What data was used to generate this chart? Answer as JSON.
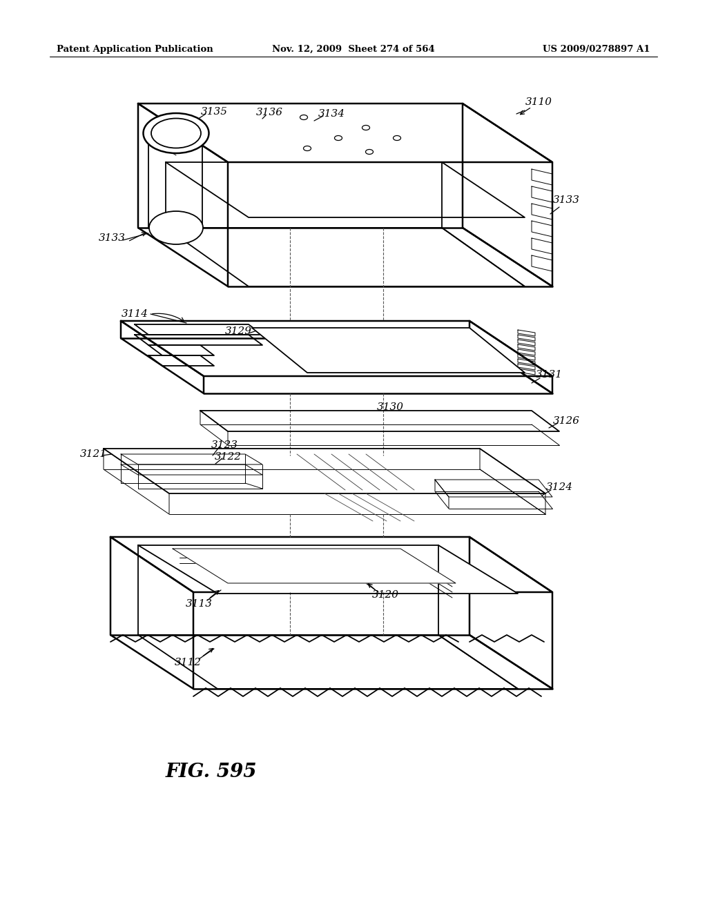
{
  "background_color": "#ffffff",
  "line_color": "#000000",
  "header_left": "Patent Application Publication",
  "header_mid": "Nov. 12, 2009  Sheet 274 of 564",
  "header_right": "US 2009/0278897 A1",
  "figure_label": "FIG. 595",
  "lw": 1.3,
  "lw_thin": 0.7,
  "lw_thick": 1.8
}
